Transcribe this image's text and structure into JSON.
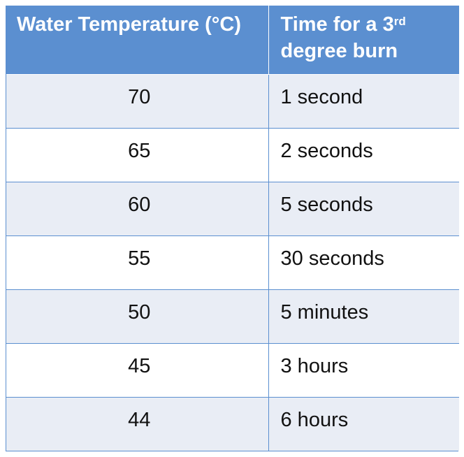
{
  "table": {
    "headers": {
      "temperature": "Water Temperature (°C)",
      "time_prefix": "Time for a 3",
      "time_sup": "rd",
      "time_suffix": "degree burn"
    },
    "rows": [
      {
        "temperature": "70",
        "time": "1 second"
      },
      {
        "temperature": "65",
        "time": "2 seconds"
      },
      {
        "temperature": "60",
        "time": "5 seconds"
      },
      {
        "temperature": "55",
        "time": "30 seconds"
      },
      {
        "temperature": "50",
        "time": "5 minutes"
      },
      {
        "temperature": "45",
        "time": "3 hours"
      },
      {
        "temperature": "44",
        "time": "6 hours"
      }
    ]
  },
  "colors": {
    "header_bg": "#5b8fd0",
    "band_bg": "#e9edf5",
    "border": "#5b8fd0"
  }
}
